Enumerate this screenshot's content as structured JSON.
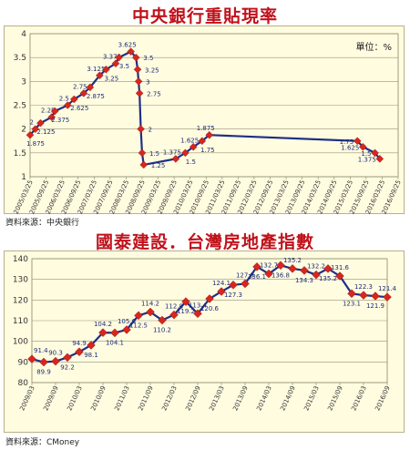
{
  "chart_data": [
    {
      "type": "line",
      "title": "中央銀行重貼現率",
      "unit_label": "單位：%",
      "source": "資料來源：中央銀行",
      "ylim": [
        1,
        4
      ],
      "yticks": [
        "1",
        "1.5",
        "2",
        "2.5",
        "3",
        "3.5",
        "4"
      ],
      "xticks": [
        "2005/03/25",
        "2005/09/25",
        "2006/03/25",
        "2006/09/25",
        "2007/03/25",
        "2007/09/25",
        "2008/03/25",
        "2008/09/25",
        "2009/03/25",
        "2009/09/25",
        "2010/03/25",
        "2010/09/25",
        "2011/03/25",
        "2011/09/25",
        "2012/03/25",
        "2012/09/25",
        "2013/03/25",
        "2013/09/25",
        "2014/03/25",
        "2014/09/25",
        "2015/03/25",
        "2015/09/25",
        "2016/03/25",
        "2016/09/25"
      ],
      "line_color": "#1f2f86",
      "marker_color": "#d8261f",
      "points": [
        {
          "x": 0.0,
          "y": 1.875,
          "label": "1.875"
        },
        {
          "x": 0.33,
          "y": 2,
          "label": "2"
        },
        {
          "x": 0.65,
          "y": 2.125,
          "label": "2.125"
        },
        {
          "x": 1.35,
          "y": 2.25,
          "label": "2.25"
        },
        {
          "x": 1.55,
          "y": 2.375,
          "label": "2.375"
        },
        {
          "x": 2.35,
          "y": 2.5,
          "label": "2.5"
        },
        {
          "x": 2.75,
          "y": 2.625,
          "label": "2.625"
        },
        {
          "x": 3.35,
          "y": 2.75,
          "label": "2.75"
        },
        {
          "x": 3.75,
          "y": 2.875,
          "label": "2.875"
        },
        {
          "x": 4.35,
          "y": 3.125,
          "label": "3.125"
        },
        {
          "x": 4.75,
          "y": 3.25,
          "label": "3.25"
        },
        {
          "x": 5.35,
          "y": 3.375,
          "label": "3.375"
        },
        {
          "x": 5.55,
          "y": 3.5,
          "label": "3.5"
        },
        {
          "x": 6.3,
          "y": 3.625,
          "label": "3.625"
        },
        {
          "x": 6.62,
          "y": 3.5,
          "label": "3.5"
        },
        {
          "x": 6.72,
          "y": 3.25,
          "label": "3.25"
        },
        {
          "x": 6.78,
          "y": 3,
          "label": "3"
        },
        {
          "x": 6.84,
          "y": 2.75,
          "label": "2.75"
        },
        {
          "x": 6.92,
          "y": 2,
          "label": "2"
        },
        {
          "x": 7.0,
          "y": 1.5,
          "label": "1.5"
        },
        {
          "x": 7.1,
          "y": 1.25,
          "label": "1.25"
        },
        {
          "x": 9.1,
          "y": 1.375,
          "label": "1.375"
        },
        {
          "x": 9.7,
          "y": 1.5,
          "label": "1.5"
        },
        {
          "x": 10.2,
          "y": 1.625,
          "label": "1.625"
        },
        {
          "x": 10.75,
          "y": 1.75,
          "label": "1.75"
        },
        {
          "x": 11.2,
          "y": 1.875,
          "label": "1.875"
        },
        {
          "x": 20.45,
          "y": 1.75,
          "label": "1.75"
        },
        {
          "x": 20.8,
          "y": 1.625,
          "label": "1.625"
        },
        {
          "x": 21.55,
          "y": 1.5,
          "label": "1.5"
        },
        {
          "x": 21.85,
          "y": 1.375,
          "label": "1.375"
        }
      ]
    },
    {
      "type": "line",
      "title": "國泰建設．台灣房地產指數",
      "source": "資料來源：CMoney",
      "ylim": [
        80,
        140
      ],
      "yticks": [
        "80",
        "90",
        "100",
        "110",
        "120",
        "130",
        "140"
      ],
      "xticks": [
        "2009/03",
        "2009/09",
        "2010/03",
        "2010/09",
        "2011/03",
        "2011/09",
        "2012/03",
        "2012/09",
        "2013/03",
        "2013/09",
        "2014/03",
        "2014/09",
        "2015/03",
        "2015/09",
        "2016/03",
        "2016/09"
      ],
      "line_color": "#1f2f86",
      "marker_color": "#d8261f",
      "points": [
        {
          "x": 0.0,
          "y": 91.4,
          "label": "91.4"
        },
        {
          "x": 0.5,
          "y": 89.9,
          "label": "89.9"
        },
        {
          "x": 1.0,
          "y": 90.3,
          "label": "90.3"
        },
        {
          "x": 1.5,
          "y": 92.2,
          "label": "92.2"
        },
        {
          "x": 2.0,
          "y": 94.9,
          "label": "94.9"
        },
        {
          "x": 2.5,
          "y": 98.1,
          "label": "98.1"
        },
        {
          "x": 3.0,
          "y": 104.2,
          "label": "104.2"
        },
        {
          "x": 3.5,
          "y": 104.1,
          "label": "104.1"
        },
        {
          "x": 4.0,
          "y": 105.6,
          "label": "105.6"
        },
        {
          "x": 4.5,
          "y": 112.5,
          "label": "112.5"
        },
        {
          "x": 5.0,
          "y": 114.2,
          "label": "114.2"
        },
        {
          "x": 5.5,
          "y": 110.2,
          "label": "110.2"
        },
        {
          "x": 6.0,
          "y": 112.8,
          "label": "112.8"
        },
        {
          "x": 6.5,
          "y": 119.2,
          "label": "119.2"
        },
        {
          "x": 7.0,
          "y": 113.4,
          "label": "113.4"
        },
        {
          "x": 7.5,
          "y": 120.6,
          "label": "120.6"
        },
        {
          "x": 8.0,
          "y": 124.1,
          "label": "124.1"
        },
        {
          "x": 8.5,
          "y": 127.3,
          "label": "127.3"
        },
        {
          "x": 9.0,
          "y": 127.9,
          "label": "127.9"
        },
        {
          "x": 9.5,
          "y": 136.1,
          "label": "136.1"
        },
        {
          "x": 10.0,
          "y": 132.7,
          "label": "132.7"
        },
        {
          "x": 10.5,
          "y": 136.8,
          "label": "136.8"
        },
        {
          "x": 11.0,
          "y": 135.2,
          "label": "135.2"
        },
        {
          "x": 11.5,
          "y": 134.3,
          "label": "134.3"
        },
        {
          "x": 12.0,
          "y": 132.2,
          "label": "132.2"
        },
        {
          "x": 12.5,
          "y": 135.2,
          "label": "135.2"
        },
        {
          "x": 13.0,
          "y": 131.6,
          "label": "131.6"
        },
        {
          "x": 13.5,
          "y": 123.1,
          "label": "123.1"
        },
        {
          "x": 14.0,
          "y": 122.3,
          "label": "122.3"
        },
        {
          "x": 14.5,
          "y": 121.9,
          "label": "121.9"
        },
        {
          "x": 15.0,
          "y": 121.4,
          "label": "121.4"
        }
      ]
    }
  ]
}
